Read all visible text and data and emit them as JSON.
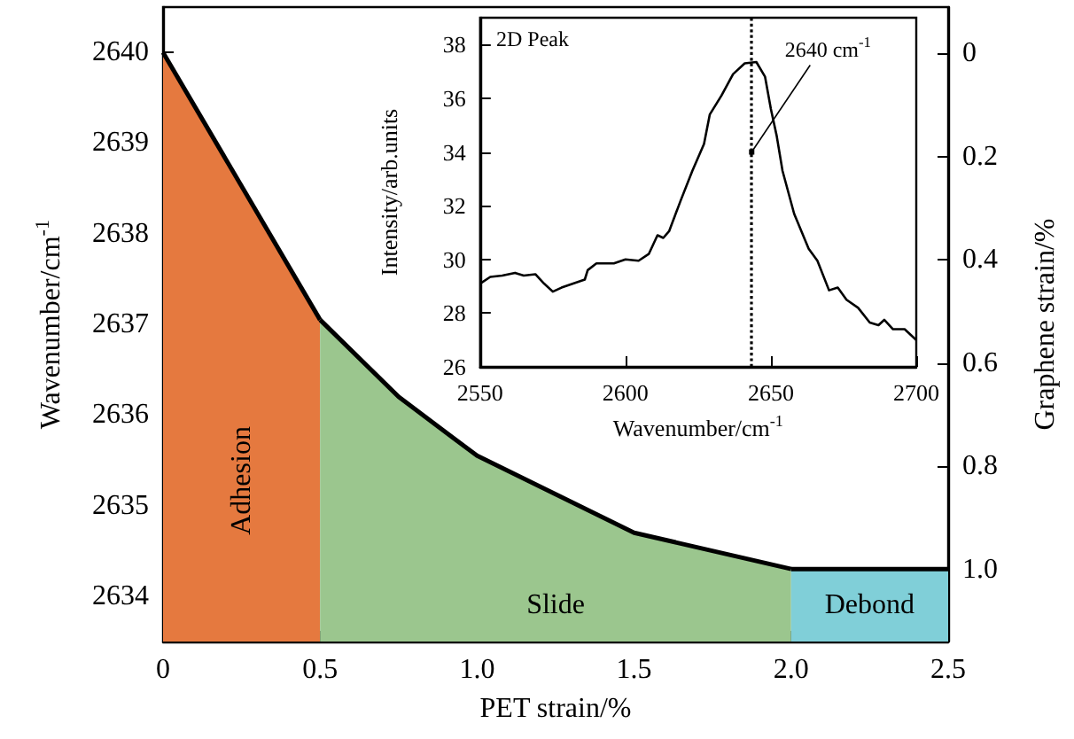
{
  "chart_data": [
    {
      "type": "area",
      "xlabel": "PET strain/%",
      "ylabel": "Wavenumber/cm$^{-1}$",
      "y2label": "Graphene strain/%",
      "xlim": [
        0,
        2.5
      ],
      "xticks": [
        0,
        0.5,
        {
          "value": 1,
          "label": "1.0"
        },
        1.5,
        {
          "value": 2,
          "label": "2.0"
        },
        2.5
      ],
      "ylim": [
        2633.5,
        2640.5
      ],
      "yticks": [
        2634,
        2635,
        2636,
        2637,
        2638,
        2639,
        2640
      ],
      "y2lim": [
        1.14,
        -0.09
      ],
      "y2ticks": [
        0,
        0.2,
        0.4,
        0.6,
        0.8,
        {
          "value": 1,
          "label": "1.0"
        }
      ],
      "series": [
        {
          "name": "Adhesion",
          "color": "#e5793f",
          "x": [
            0,
            0.5
          ],
          "values": [
            2640,
            2637.05
          ]
        },
        {
          "name": "Slide",
          "color": "#9bc68e",
          "x": [
            0.5,
            0.75,
            1,
            1.5,
            2
          ],
          "values": [
            2637.05,
            2636.2,
            2635.55,
            2634.7,
            2634.3
          ]
        },
        {
          "name": "Debond",
          "color": "#80cfd8",
          "x": [
            2,
            2.5
          ],
          "values": [
            2634.3,
            2634.3
          ]
        }
      ],
      "legend": false,
      "grid": false
    },
    {
      "type": "line",
      "xlabel": "Wavenumber/cm$^{-1}$",
      "ylabel": "Intensity/arb.units",
      "xlim": [
        2550,
        2700
      ],
      "xticks": [
        2550,
        2600,
        2650,
        2700
      ],
      "ylim": [
        26,
        39
      ],
      "yticks": [
        26,
        28,
        30,
        32,
        34,
        36,
        38
      ],
      "x": [
        2550,
        2553.5,
        2557.6,
        2562,
        2565,
        2569,
        2572,
        2575,
        2578,
        2582,
        2586,
        2587,
        2590,
        2596,
        2600,
        2604.5,
        2608,
        2611,
        2613,
        2615,
        2619,
        2623,
        2627,
        2629,
        2633,
        2637,
        2641,
        2645,
        2648,
        2650,
        2652,
        2654,
        2658,
        2663,
        2666,
        2670,
        2673,
        2676,
        2680,
        2684,
        2687,
        2689,
        2692,
        2696,
        2700
      ],
      "series": [
        {
          "color": "#000000",
          "values": [
            29.1,
            29.35,
            29.4,
            29.5,
            29.4,
            29.45,
            29.1,
            28.8,
            28.95,
            29.1,
            29.25,
            29.6,
            29.85,
            29.85,
            30.0,
            29.95,
            30.2,
            30.9,
            30.8,
            31.05,
            32.2,
            33.3,
            34.3,
            35.4,
            36.1,
            36.9,
            37.3,
            37.35,
            36.8,
            35.6,
            34.6,
            33.3,
            31.7,
            30.4,
            29.95,
            28.85,
            28.95,
            28.5,
            28.2,
            27.65,
            27.55,
            27.75,
            27.4,
            27.4,
            27.0
          ]
        }
      ],
      "ref_lines": [
        {
          "axis": "x",
          "value": 2643.4,
          "line_style": "dotted"
        }
      ],
      "annotations": [
        "2D Peak",
        {
          "text": "2640 cm$^{-1}$",
          "x": 2643.4,
          "y": 34
        }
      ],
      "legend": false,
      "grid": false
    }
  ]
}
